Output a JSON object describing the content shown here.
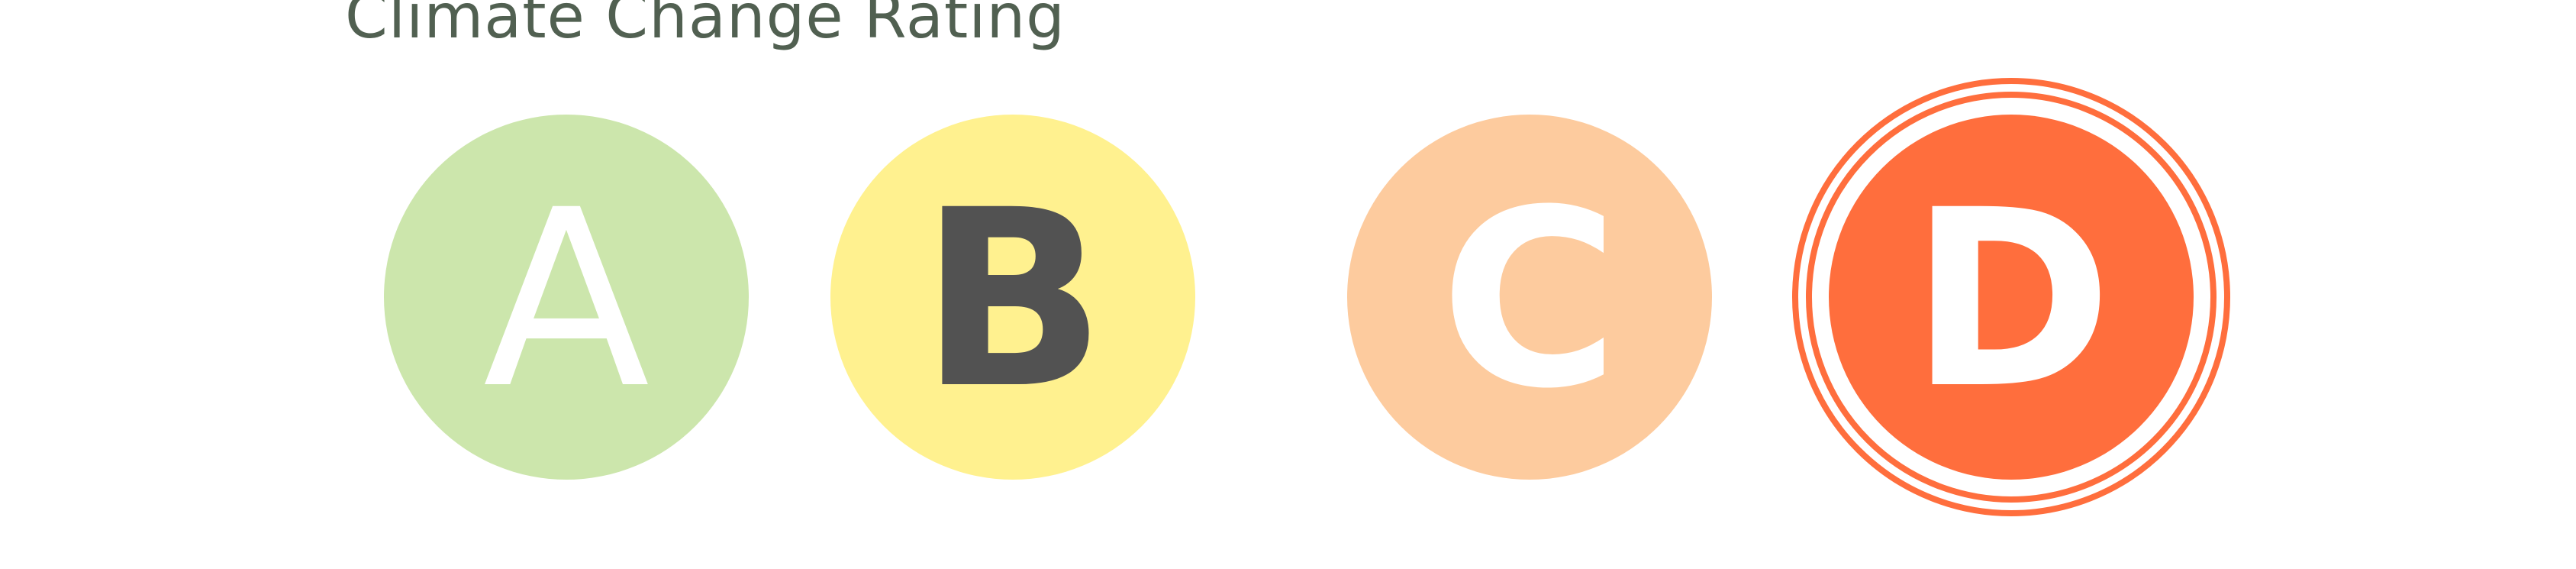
{
  "title": "Climate Change Rating",
  "selected_rating": "D",
  "ratings": [
    {
      "label": "A",
      "background": "#CCE6AC",
      "text_color": "#FFFFFF"
    },
    {
      "label": "B",
      "background": "#FFF18F",
      "text_color": "#525252"
    },
    {
      "label": "C",
      "background": "#FDCB9E",
      "text_color": "#FFFFFF"
    },
    {
      "label": "D",
      "background": "#FF6E3D",
      "text_color": "#FFFFFF"
    }
  ]
}
